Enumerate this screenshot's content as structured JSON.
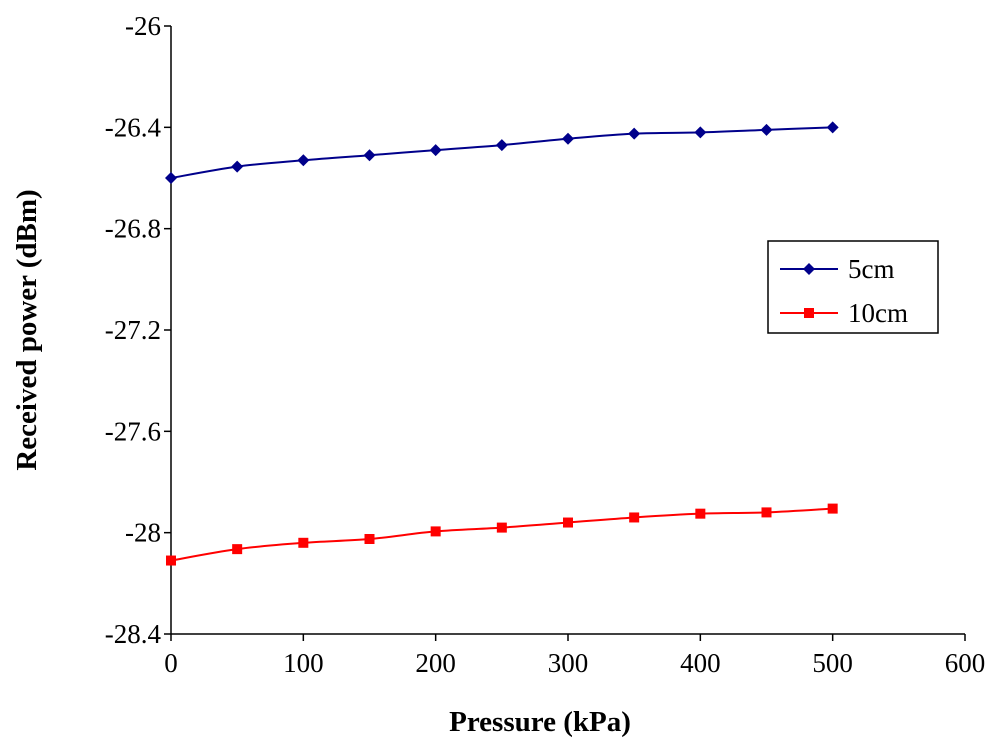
{
  "chart_data": {
    "type": "line",
    "title": "",
    "xlabel": "Pressure (kPa)",
    "ylabel": "Received power (dBm)",
    "xlim": [
      0,
      600
    ],
    "ylim": [
      -28.4,
      -26
    ],
    "xticks": [
      0,
      100,
      200,
      300,
      400,
      500,
      600
    ],
    "yticks": [
      -26,
      -26.4,
      -26.8,
      -27.2,
      -27.6,
      -28,
      -28.4
    ],
    "xtick_labels": [
      "0",
      "100",
      "200",
      "300",
      "400",
      "500",
      "600"
    ],
    "ytick_labels": [
      "-26",
      "-26.4",
      "-26.8",
      "-27.2",
      "-27.6",
      "-28",
      "-28.4"
    ],
    "grid": false,
    "legend_position": "right",
    "x": [
      0,
      50,
      100,
      150,
      200,
      250,
      300,
      350,
      400,
      450,
      500
    ],
    "series": [
      {
        "name": "5cm",
        "color": "#00008B",
        "marker": "diamond",
        "values": [
          -26.6,
          -26.555,
          -26.53,
          -26.51,
          -26.49,
          -26.47,
          -26.445,
          -26.425,
          -26.42,
          -26.41,
          -26.4
        ]
      },
      {
        "name": "10cm",
        "color": "#FF0000",
        "marker": "square",
        "values": [
          -28.11,
          -28.065,
          -28.04,
          -28.025,
          -27.995,
          -27.98,
          -27.96,
          -27.94,
          -27.925,
          -27.92,
          -27.905
        ]
      }
    ]
  }
}
